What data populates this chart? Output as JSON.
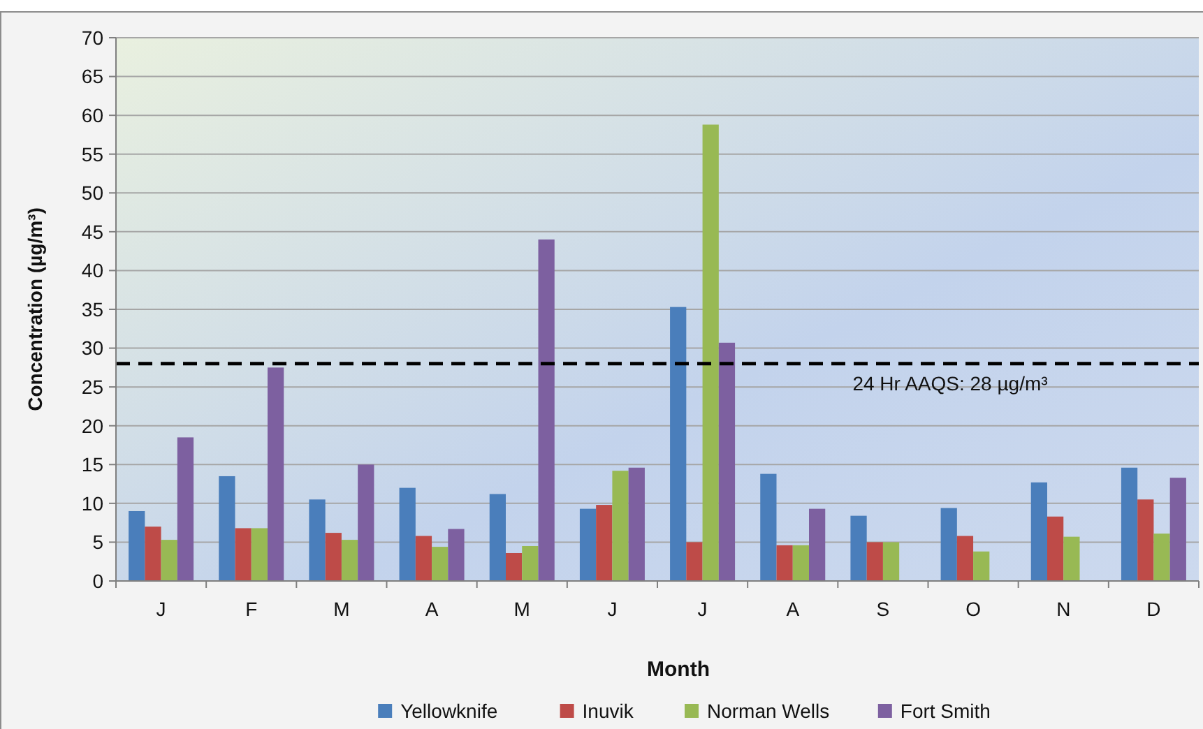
{
  "chart_data": {
    "type": "bar",
    "xlabel": "Month",
    "ylabel": "Concentration (µg/m³)",
    "categories": [
      "J",
      "F",
      "M",
      "A",
      "M",
      "J",
      "J",
      "A",
      "S",
      "O",
      "N",
      "D"
    ],
    "series": [
      {
        "name": "Yellowknife",
        "color": "#4a7ebb",
        "values": [
          9,
          13.5,
          10.5,
          12,
          11.2,
          9.3,
          35.3,
          13.8,
          8.4,
          9.4,
          12.7,
          14.6
        ]
      },
      {
        "name": "Inuvik",
        "color": "#be4b48",
        "values": [
          7,
          6.8,
          6.2,
          5.8,
          3.6,
          9.8,
          5,
          4.6,
          5,
          5.8,
          8.3,
          10.5
        ]
      },
      {
        "name": "Norman Wells",
        "color": "#98b954",
        "values": [
          5.3,
          6.8,
          5.3,
          4.4,
          4.5,
          14.2,
          58.8,
          4.6,
          5,
          3.8,
          5.7,
          6.1
        ]
      },
      {
        "name": "Fort Smith",
        "color": "#7d60a0",
        "values": [
          18.5,
          27.5,
          15,
          6.7,
          44,
          14.6,
          30.7,
          9.3,
          null,
          null,
          null,
          13.3
        ]
      }
    ],
    "ylim": [
      0,
      70
    ],
    "yticks": [
      0,
      5,
      10,
      15,
      20,
      25,
      30,
      35,
      40,
      45,
      50,
      55,
      60,
      65,
      70
    ],
    "grid": "y",
    "legend": "bottom",
    "ref_lines": [
      {
        "axis": "y",
        "value": 28,
        "label": "24 Hr AAQS: 28 µg/m³",
        "color": "#000000",
        "line_style": "dashed"
      }
    ]
  }
}
